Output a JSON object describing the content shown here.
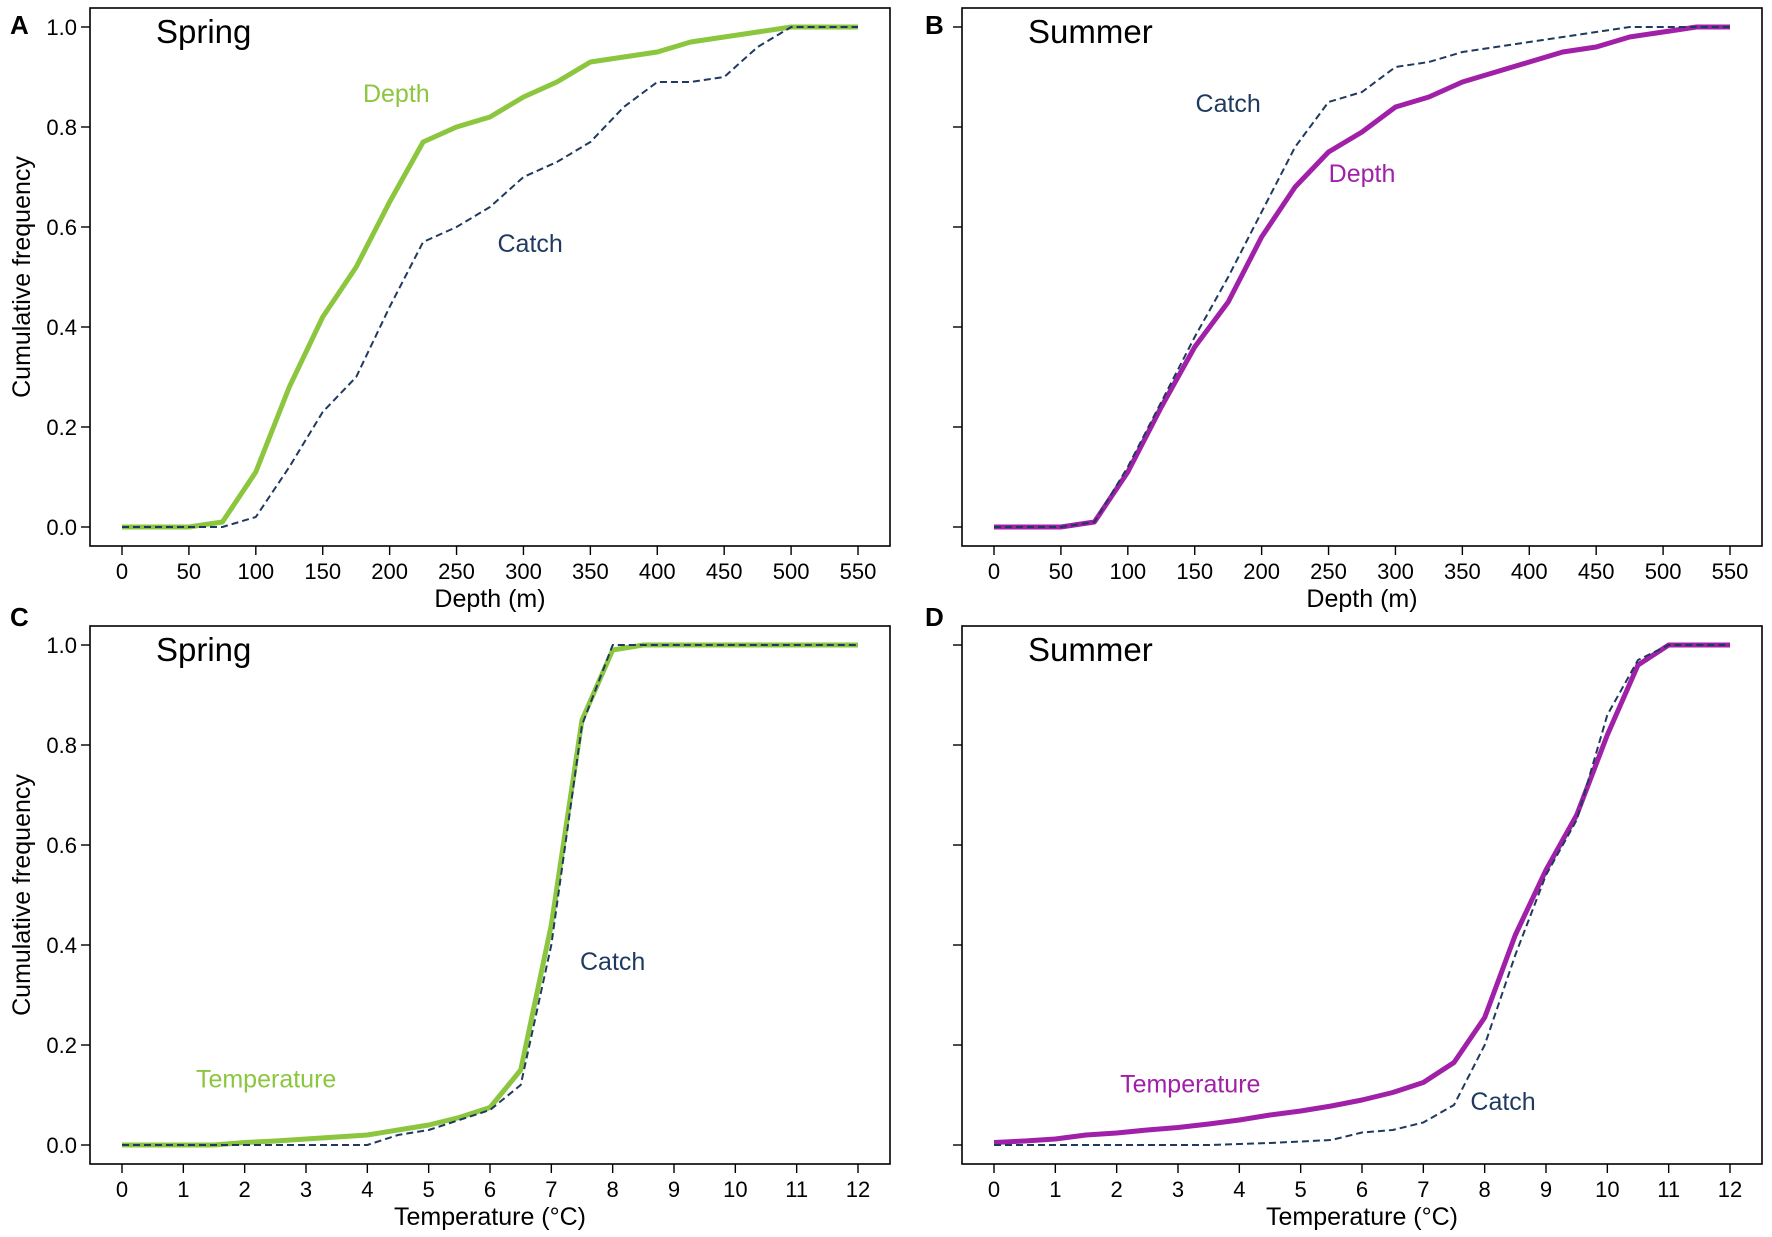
{
  "chart_data": [
    {
      "panel": "A",
      "type": "line",
      "title": "Spring",
      "xlabel": "Depth (m)",
      "ylabel": "Cumulative frequency",
      "xlim": [
        0,
        550
      ],
      "ylim": [
        0,
        1.0
      ],
      "xticks": [
        0,
        50,
        100,
        150,
        200,
        250,
        300,
        350,
        400,
        450,
        500,
        550
      ],
      "xtick_labels": [
        "0",
        "50",
        "100",
        "150",
        "200",
        "250",
        "300",
        "350",
        "400",
        "450",
        "500",
        "550"
      ],
      "yticks": [
        0,
        0.2,
        0.4,
        0.6,
        0.8,
        1.0
      ],
      "ytick_labels": [
        "0.0",
        "0.2",
        "0.4",
        "0.6",
        "0.8",
        "1.0"
      ],
      "series": [
        {
          "name": "Depth",
          "label": "Depth",
          "style": "solid",
          "color": "#8cc63f",
          "label_anchor": [
            205,
            0.85
          ],
          "x": [
            0,
            25,
            50,
            75,
            100,
            125,
            150,
            175,
            200,
            225,
            250,
            275,
            300,
            325,
            350,
            375,
            400,
            425,
            450,
            475,
            500,
            525,
            550
          ],
          "y": [
            0,
            0,
            0,
            0.01,
            0.11,
            0.28,
            0.42,
            0.52,
            0.65,
            0.77,
            0.8,
            0.82,
            0.86,
            0.89,
            0.93,
            0.94,
            0.95,
            0.97,
            0.98,
            0.99,
            1.0,
            1.0,
            1.0
          ]
        },
        {
          "name": "Catch",
          "label": "Catch",
          "style": "dashed",
          "color": "#1f3a5f",
          "label_anchor": [
            305,
            0.55
          ],
          "x": [
            0,
            25,
            50,
            75,
            100,
            125,
            150,
            175,
            200,
            225,
            250,
            275,
            300,
            325,
            350,
            375,
            400,
            425,
            450,
            475,
            500,
            525,
            550
          ],
          "y": [
            0,
            0,
            0,
            0,
            0.02,
            0.12,
            0.23,
            0.3,
            0.44,
            0.57,
            0.6,
            0.64,
            0.7,
            0.73,
            0.77,
            0.84,
            0.89,
            0.89,
            0.9,
            0.96,
            1.0,
            1.0,
            1.0
          ]
        }
      ]
    },
    {
      "panel": "B",
      "type": "line",
      "title": "Summer",
      "xlabel": "Depth (m)",
      "ylabel": "",
      "xlim": [
        0,
        550
      ],
      "ylim": [
        0,
        1.0
      ],
      "xticks": [
        0,
        50,
        100,
        150,
        200,
        250,
        300,
        350,
        400,
        450,
        500,
        550
      ],
      "xtick_labels": [
        "0",
        "50",
        "100",
        "150",
        "200",
        "250",
        "300",
        "350",
        "400",
        "450",
        "500",
        "550"
      ],
      "yticks": [
        0,
        0.2,
        0.4,
        0.6,
        0.8,
        1.0
      ],
      "ytick_labels": [],
      "series": [
        {
          "name": "Catch",
          "label": "Catch",
          "style": "dashed",
          "color": "#1f3a5f",
          "label_anchor": [
            175,
            0.83
          ],
          "x": [
            0,
            25,
            50,
            75,
            100,
            125,
            150,
            175,
            200,
            225,
            250,
            275,
            300,
            325,
            350,
            375,
            400,
            425,
            450,
            475,
            500,
            525,
            550
          ],
          "y": [
            0,
            0,
            0,
            0.01,
            0.12,
            0.25,
            0.38,
            0.5,
            0.63,
            0.76,
            0.85,
            0.87,
            0.92,
            0.93,
            0.95,
            0.96,
            0.97,
            0.98,
            0.99,
            1.0,
            1.0,
            1.0,
            1.0
          ]
        },
        {
          "name": "Depth",
          "label": "Depth",
          "style": "solid",
          "color": "#a020a8",
          "label_anchor": [
            275,
            0.69
          ],
          "x": [
            0,
            25,
            50,
            75,
            100,
            125,
            150,
            175,
            200,
            225,
            250,
            275,
            300,
            325,
            350,
            375,
            400,
            425,
            450,
            475,
            500,
            525,
            550
          ],
          "y": [
            0,
            0,
            0,
            0.01,
            0.11,
            0.24,
            0.36,
            0.45,
            0.58,
            0.68,
            0.75,
            0.79,
            0.84,
            0.86,
            0.89,
            0.91,
            0.93,
            0.95,
            0.96,
            0.98,
            0.99,
            1.0,
            1.0
          ]
        }
      ]
    },
    {
      "panel": "C",
      "type": "line",
      "title": "Spring",
      "xlabel": "Temperature (°C)",
      "ylabel": "Cumulative frequency",
      "xlim": [
        0,
        12
      ],
      "ylim": [
        0,
        1.0
      ],
      "xticks": [
        0,
        1,
        2,
        3,
        4,
        5,
        6,
        7,
        8,
        9,
        10,
        11,
        12
      ],
      "xtick_labels": [
        "0",
        "1",
        "2",
        "3",
        "4",
        "5",
        "6",
        "7",
        "8",
        "9",
        "10",
        "11",
        "12"
      ],
      "yticks": [
        0,
        0.2,
        0.4,
        0.6,
        0.8,
        1.0
      ],
      "ytick_labels": [
        "0.0",
        "0.2",
        "0.4",
        "0.6",
        "0.8",
        "1.0"
      ],
      "series": [
        {
          "name": "Temperature",
          "label": "Temperature",
          "style": "solid",
          "color": "#8cc63f",
          "label_anchor": [
            2.35,
            0.115
          ],
          "x": [
            0,
            0.5,
            1,
            1.5,
            2,
            2.5,
            3,
            3.5,
            4,
            4.5,
            5,
            5.5,
            6,
            6.5,
            7,
            7.5,
            8,
            8.5,
            9,
            9.5,
            10,
            10.5,
            11,
            11.5,
            12
          ],
          "y": [
            0,
            0,
            0,
            0,
            0.005,
            0.008,
            0.012,
            0.016,
            0.02,
            0.03,
            0.04,
            0.055,
            0.075,
            0.15,
            0.44,
            0.85,
            0.99,
            1.0,
            1.0,
            1.0,
            1.0,
            1.0,
            1.0,
            1.0,
            1.0
          ]
        },
        {
          "name": "Catch",
          "label": "Catch",
          "style": "dashed",
          "color": "#1f3a5f",
          "label_anchor": [
            8.0,
            0.35
          ],
          "x": [
            0,
            0.5,
            1,
            1.5,
            2,
            2.5,
            3,
            3.5,
            4,
            4.5,
            5,
            5.5,
            6,
            6.5,
            7,
            7.5,
            8,
            8.5,
            9,
            9.5,
            10,
            10.5,
            11,
            11.5,
            12
          ],
          "y": [
            0,
            0,
            0,
            0,
            0,
            0,
            0,
            0,
            0,
            0.02,
            0.03,
            0.05,
            0.07,
            0.12,
            0.4,
            0.84,
            1.0,
            1.0,
            1.0,
            1.0,
            1.0,
            1.0,
            1.0,
            1.0,
            1.0
          ]
        }
      ]
    },
    {
      "panel": "D",
      "type": "line",
      "title": "Summer",
      "xlabel": "Temperature (°C)",
      "ylabel": "",
      "xlim": [
        0,
        12
      ],
      "ylim": [
        0,
        1.0
      ],
      "xticks": [
        0,
        1,
        2,
        3,
        4,
        5,
        6,
        7,
        8,
        9,
        10,
        11,
        12
      ],
      "xtick_labels": [
        "0",
        "1",
        "2",
        "3",
        "4",
        "5",
        "6",
        "7",
        "8",
        "9",
        "10",
        "11",
        "12"
      ],
      "yticks": [
        0,
        0.2,
        0.4,
        0.6,
        0.8,
        1.0
      ],
      "ytick_labels": [],
      "series": [
        {
          "name": "Temperature",
          "label": "Temperature",
          "style": "solid",
          "color": "#a020a8",
          "label_anchor": [
            3.2,
            0.105
          ],
          "x": [
            0,
            0.5,
            1,
            1.5,
            2,
            2.5,
            3,
            3.5,
            4,
            4.5,
            5,
            5.5,
            6,
            6.5,
            7,
            7.5,
            8,
            8.5,
            9,
            9.5,
            10,
            10.5,
            11,
            11.5,
            12
          ],
          "y": [
            0.005,
            0.008,
            0.012,
            0.02,
            0.024,
            0.03,
            0.035,
            0.042,
            0.05,
            0.06,
            0.068,
            0.078,
            0.09,
            0.105,
            0.125,
            0.165,
            0.255,
            0.42,
            0.55,
            0.66,
            0.82,
            0.96,
            1.0,
            1.0,
            1.0
          ]
        },
        {
          "name": "Catch",
          "label": "Catch",
          "style": "dashed",
          "color": "#1f3a5f",
          "label_anchor": [
            8.3,
            0.07
          ],
          "x": [
            0,
            0.5,
            1,
            1.5,
            2,
            2.5,
            3,
            3.5,
            4,
            4.5,
            5,
            5.5,
            6,
            6.5,
            7,
            7.5,
            8,
            8.5,
            9,
            9.5,
            10,
            10.5,
            11,
            11.5,
            12
          ],
          "y": [
            0,
            0,
            0,
            0,
            0,
            0,
            0,
            0,
            0.002,
            0.004,
            0.007,
            0.01,
            0.025,
            0.03,
            0.045,
            0.08,
            0.2,
            0.38,
            0.54,
            0.65,
            0.86,
            0.97,
            1.0,
            1.0,
            1.0
          ]
        }
      ]
    }
  ]
}
